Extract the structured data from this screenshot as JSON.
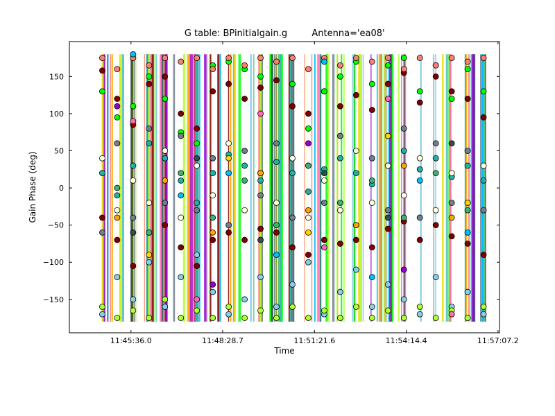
{
  "chart_data": {
    "type": "scatter",
    "title": "G table: BPinitialgain.g",
    "title_suffix": "Antenna='ea08'",
    "xlabel": "Time",
    "ylabel": "Gain Phase (deg)",
    "x_is_time": true,
    "xlim": [
      "11:43:40",
      "11:57:10"
    ],
    "ylim": [
      -195,
      197
    ],
    "x_ticks": [
      "11:45:36.0",
      "11:48:28.7",
      "11:51:21.6",
      "11:54:14.4",
      "11:57:07.2"
    ],
    "y_ticks": [
      -150,
      -100,
      -50,
      0,
      50,
      100,
      150
    ],
    "grid": false,
    "marker": "circle",
    "marker_edge_color": "#000000",
    "data_range": {
      "x": [
        "11:44:40",
        "11:56:45"
      ],
      "y": [
        -180,
        180
      ]
    },
    "series": [
      {
        "color": "#800000",
        "points": [
          [
            "11:44:42",
            158
          ],
          [
            "11:45:10",
            120
          ],
          [
            "11:45:40",
            85
          ],
          [
            "11:46:10",
            140
          ],
          [
            "11:46:40",
            150
          ],
          [
            "11:47:10",
            100
          ],
          [
            "11:47:40",
            80
          ],
          [
            "11:48:10",
            130
          ],
          [
            "11:48:40",
            140
          ],
          [
            "11:49:10",
            120
          ],
          [
            "11:49:40",
            135
          ],
          [
            "11:50:10",
            145
          ],
          [
            "11:50:40",
            110
          ],
          [
            "11:51:10",
            100
          ],
          [
            "11:51:40",
            130
          ],
          [
            "11:52:10",
            110
          ],
          [
            "11:52:40",
            125
          ],
          [
            "11:53:10",
            105
          ],
          [
            "11:53:40",
            140
          ],
          [
            "11:54:10",
            155
          ],
          [
            "11:54:40",
            115
          ],
          [
            "11:55:10",
            150
          ],
          [
            "11:55:40",
            130
          ],
          [
            "11:56:10",
            120
          ],
          [
            "11:56:40",
            95
          ],
          [
            "11:44:42",
            -40
          ],
          [
            "11:45:10",
            -70
          ],
          [
            "11:45:40",
            -105
          ],
          [
            "11:46:10",
            -60
          ],
          [
            "11:46:40",
            -50
          ],
          [
            "11:47:10",
            -80
          ],
          [
            "11:47:40",
            -105
          ],
          [
            "11:48:10",
            -70
          ],
          [
            "11:48:40",
            -60
          ],
          [
            "11:49:10",
            -70
          ],
          [
            "11:49:40",
            -55
          ],
          [
            "11:50:10",
            -60
          ],
          [
            "11:50:40",
            -80
          ],
          [
            "11:51:10",
            -90
          ],
          [
            "11:51:40",
            -70
          ],
          [
            "11:52:10",
            -75
          ],
          [
            "11:52:40",
            -70
          ],
          [
            "11:53:10",
            -80
          ],
          [
            "11:53:40",
            -55
          ],
          [
            "11:54:10",
            -45
          ],
          [
            "11:54:40",
            -70
          ],
          [
            "11:55:10",
            -50
          ],
          [
            "11:55:40",
            -65
          ],
          [
            "11:56:10",
            -75
          ],
          [
            "11:56:40",
            -90
          ]
        ]
      },
      {
        "color": "#00ff00",
        "points": [
          [
            "11:44:42",
            130
          ],
          [
            "11:45:10",
            95
          ],
          [
            "11:45:40",
            110
          ],
          [
            "11:46:10",
            150
          ],
          [
            "11:46:40",
            120
          ],
          [
            "11:47:10",
            75
          ],
          [
            "11:47:40",
            60
          ],
          [
            "11:48:10",
            165
          ],
          [
            "11:48:40",
            170
          ],
          [
            "11:49:10",
            160
          ],
          [
            "11:49:40",
            150
          ],
          [
            "11:50:10",
            170
          ],
          [
            "11:50:40",
            140
          ],
          [
            "11:51:10",
            80
          ],
          [
            "11:51:40",
            130
          ],
          [
            "11:52:10",
            150
          ],
          [
            "11:52:40",
            170
          ],
          [
            "11:53:10",
            140
          ],
          [
            "11:53:40",
            165
          ],
          [
            "11:54:10",
            175
          ],
          [
            "11:54:40",
            130
          ],
          [
            "11:55:10",
            165
          ],
          [
            "11:55:40",
            120
          ],
          [
            "11:56:10",
            160
          ],
          [
            "11:56:40",
            130
          ]
        ]
      },
      {
        "color": "#87ceeb",
        "points": [
          [
            "11:44:42",
            -170
          ],
          [
            "11:45:10",
            -120
          ],
          [
            "11:45:40",
            -150
          ],
          [
            "11:46:10",
            -100
          ],
          [
            "11:46:40",
            -160
          ],
          [
            "11:47:10",
            -120
          ],
          [
            "11:47:40",
            -90
          ],
          [
            "11:48:10",
            -140
          ],
          [
            "11:48:40",
            -170
          ],
          [
            "11:49:10",
            -150
          ],
          [
            "11:49:40",
            -120
          ],
          [
            "11:50:10",
            -160
          ],
          [
            "11:50:40",
            -130
          ],
          [
            "11:51:10",
            -100
          ],
          [
            "11:51:40",
            -170
          ],
          [
            "11:52:10",
            -140
          ],
          [
            "11:52:40",
            -110
          ],
          [
            "11:53:10",
            -160
          ],
          [
            "11:53:40",
            -130
          ],
          [
            "11:54:10",
            -150
          ],
          [
            "11:54:40",
            -170
          ],
          [
            "11:55:10",
            -120
          ],
          [
            "11:55:40",
            -160
          ],
          [
            "11:56:10",
            -140
          ],
          [
            "11:56:40",
            -170
          ]
        ]
      },
      {
        "color": "#20b2aa",
        "points": [
          [
            "11:44:42",
            20
          ],
          [
            "11:45:10",
            -10
          ],
          [
            "11:45:40",
            30
          ],
          [
            "11:46:10",
            60
          ],
          [
            "11:46:40",
            40
          ],
          [
            "11:47:10",
            10
          ],
          [
            "11:47:40",
            -20
          ],
          [
            "11:48:10",
            20
          ],
          [
            "11:48:40",
            45
          ],
          [
            "11:49:10",
            30
          ],
          [
            "11:49:40",
            10
          ],
          [
            "11:50:10",
            35
          ],
          [
            "11:50:40",
            20
          ],
          [
            "11:51:10",
            -5
          ],
          [
            "11:51:40",
            25
          ],
          [
            "11:52:10",
            40
          ],
          [
            "11:52:40",
            20
          ],
          [
            "11:53:10",
            5
          ],
          [
            "11:53:40",
            30
          ],
          [
            "11:54:10",
            50
          ],
          [
            "11:54:40",
            25
          ],
          [
            "11:55:10",
            40
          ],
          [
            "11:55:40",
            15
          ],
          [
            "11:56:10",
            30
          ],
          [
            "11:56:40",
            10
          ]
        ]
      },
      {
        "color": "#fa8072",
        "points": [
          [
            "11:44:42",
            175
          ],
          [
            "11:45:10",
            160
          ],
          [
            "11:45:40",
            175
          ],
          [
            "11:46:10",
            165
          ],
          [
            "11:46:40",
            175
          ],
          [
            "11:47:10",
            170
          ],
          [
            "11:47:40",
            175
          ],
          [
            "11:48:10",
            160
          ],
          [
            "11:48:40",
            175
          ],
          [
            "11:49:10",
            165
          ],
          [
            "11:49:40",
            175
          ],
          [
            "11:50:10",
            170
          ],
          [
            "11:50:40",
            175
          ],
          [
            "11:51:10",
            160
          ],
          [
            "11:51:40",
            175
          ],
          [
            "11:52:10",
            165
          ],
          [
            "11:52:40",
            175
          ],
          [
            "11:53:10",
            170
          ],
          [
            "11:53:40",
            175
          ],
          [
            "11:54:10",
            160
          ],
          [
            "11:54:40",
            175
          ],
          [
            "11:55:10",
            165
          ],
          [
            "11:55:40",
            175
          ],
          [
            "11:56:10",
            170
          ],
          [
            "11:56:40",
            175
          ]
        ]
      },
      {
        "color": "#adff2f",
        "points": [
          [
            "11:44:42",
            -160
          ],
          [
            "11:45:10",
            -175
          ],
          [
            "11:45:40",
            -165
          ],
          [
            "11:46:10",
            -175
          ],
          [
            "11:46:40",
            -150
          ],
          [
            "11:47:10",
            -175
          ],
          [
            "11:47:40",
            -165
          ],
          [
            "11:48:10",
            -175
          ],
          [
            "11:48:40",
            -160
          ],
          [
            "11:49:10",
            -175
          ],
          [
            "11:49:40",
            -165
          ],
          [
            "11:50:10",
            -175
          ],
          [
            "11:50:40",
            -160
          ],
          [
            "11:51:10",
            -175
          ],
          [
            "11:51:40",
            -165
          ],
          [
            "11:52:10",
            -175
          ],
          [
            "11:52:40",
            -160
          ],
          [
            "11:53:10",
            -175
          ],
          [
            "11:53:40",
            -165
          ],
          [
            "11:54:10",
            -175
          ],
          [
            "11:54:40",
            -160
          ],
          [
            "11:55:10",
            -175
          ],
          [
            "11:55:40",
            -165
          ],
          [
            "11:56:10",
            -175
          ],
          [
            "11:56:40",
            -160
          ]
        ]
      },
      {
        "color": "#708090",
        "points": [
          [
            "11:44:42",
            -60
          ],
          [
            "11:45:10",
            60
          ],
          [
            "11:45:40",
            -40
          ],
          [
            "11:46:10",
            80
          ],
          [
            "11:46:40",
            -20
          ],
          [
            "11:47:10",
            70
          ],
          [
            "11:47:40",
            -30
          ],
          [
            "11:48:10",
            40
          ],
          [
            "11:48:40",
            -50
          ],
          [
            "11:49:10",
            50
          ],
          [
            "11:49:40",
            -10
          ],
          [
            "11:50:10",
            60
          ],
          [
            "11:50:40",
            -40
          ],
          [
            "11:51:10",
            30
          ],
          [
            "11:51:40",
            -20
          ],
          [
            "11:52:10",
            70
          ],
          [
            "11:52:40",
            -50
          ],
          [
            "11:53:10",
            40
          ],
          [
            "11:53:40",
            -30
          ],
          [
            "11:54:10",
            80
          ],
          [
            "11:54:40",
            -40
          ],
          [
            "11:55:10",
            60
          ],
          [
            "11:55:40",
            -20
          ],
          [
            "11:56:10",
            50
          ],
          [
            "11:56:40",
            -30
          ]
        ]
      },
      {
        "color": "#ffffe0",
        "points": [
          [
            "11:44:42",
            40
          ],
          [
            "11:45:10",
            -30
          ],
          [
            "11:45:40",
            10
          ],
          [
            "11:46:10",
            -20
          ],
          [
            "11:46:40",
            50
          ],
          [
            "11:47:10",
            -40
          ],
          [
            "11:47:40",
            30
          ],
          [
            "11:48:10",
            -10
          ],
          [
            "11:48:40",
            60
          ],
          [
            "11:49:10",
            -30
          ],
          [
            "11:49:40",
            20
          ],
          [
            "11:50:10",
            -20
          ],
          [
            "11:50:40",
            40
          ],
          [
            "11:51:10",
            -40
          ],
          [
            "11:51:40",
            10
          ],
          [
            "11:52:10",
            -30
          ],
          [
            "11:52:40",
            50
          ],
          [
            "11:53:10",
            -20
          ],
          [
            "11:53:40",
            30
          ],
          [
            "11:54:10",
            -10
          ],
          [
            "11:54:40",
            40
          ],
          [
            "11:55:10",
            -30
          ],
          [
            "11:55:40",
            20
          ],
          [
            "11:56:10",
            -20
          ],
          [
            "11:56:40",
            30
          ]
        ]
      },
      {
        "color": "#ffa500",
        "points": [
          [
            "11:45:10",
            -40
          ],
          [
            "11:46:40",
            10
          ],
          [
            "11:48:10",
            -60
          ],
          [
            "11:49:40",
            20
          ],
          [
            "11:51:10",
            -30
          ],
          [
            "11:52:40",
            -50
          ],
          [
            "11:54:10",
            30
          ],
          [
            "11:55:40",
            -40
          ]
        ]
      },
      {
        "color": "#00bfff",
        "points": [
          [
            "11:45:40",
            180
          ],
          [
            "11:47:10",
            -10
          ],
          [
            "11:48:40",
            20
          ],
          [
            "11:50:10",
            -90
          ],
          [
            "11:51:40",
            170
          ],
          [
            "11:53:10",
            -120
          ],
          [
            "11:54:40",
            10
          ],
          [
            "11:56:10",
            -60
          ]
        ]
      },
      {
        "color": "#ff69b4",
        "points": [
          [
            "11:45:40",
            90
          ],
          [
            "11:47:40",
            -150
          ],
          [
            "11:49:40",
            100
          ],
          [
            "11:51:40",
            -80
          ],
          [
            "11:53:40",
            120
          ],
          [
            "11:55:40",
            -170
          ]
        ]
      },
      {
        "color": "#9400d3",
        "points": [
          [
            "11:45:10",
            110
          ],
          [
            "11:48:10",
            -130
          ],
          [
            "11:51:10",
            60
          ],
          [
            "11:54:10",
            -110
          ]
        ]
      },
      {
        "color": "#3cb371",
        "points": [
          [
            "11:45:10",
            0
          ],
          [
            "11:46:10",
            -60
          ],
          [
            "11:47:10",
            20
          ],
          [
            "11:48:10",
            -40
          ],
          [
            "11:49:10",
            10
          ],
          [
            "11:50:10",
            -50
          ],
          [
            "11:51:10",
            30
          ],
          [
            "11:52:10",
            -20
          ],
          [
            "11:53:10",
            10
          ],
          [
            "11:54:10",
            -40
          ],
          [
            "11:55:10",
            20
          ],
          [
            "11:56:10",
            -30
          ]
        ]
      },
      {
        "color": "#2f4f4f",
        "points": [
          [
            "11:45:40",
            -60
          ],
          [
            "11:47:40",
            40
          ],
          [
            "11:49:40",
            -70
          ],
          [
            "11:51:40",
            20
          ],
          [
            "11:53:40",
            -40
          ],
          [
            "11:55:40",
            60
          ]
        ]
      },
      {
        "color": "#ffd700",
        "points": [
          [
            "11:46:10",
            -90
          ],
          [
            "11:48:40",
            40
          ],
          [
            "11:51:10",
            -60
          ],
          [
            "11:53:40",
            70
          ],
          [
            "11:56:10",
            -20
          ]
        ]
      }
    ]
  }
}
